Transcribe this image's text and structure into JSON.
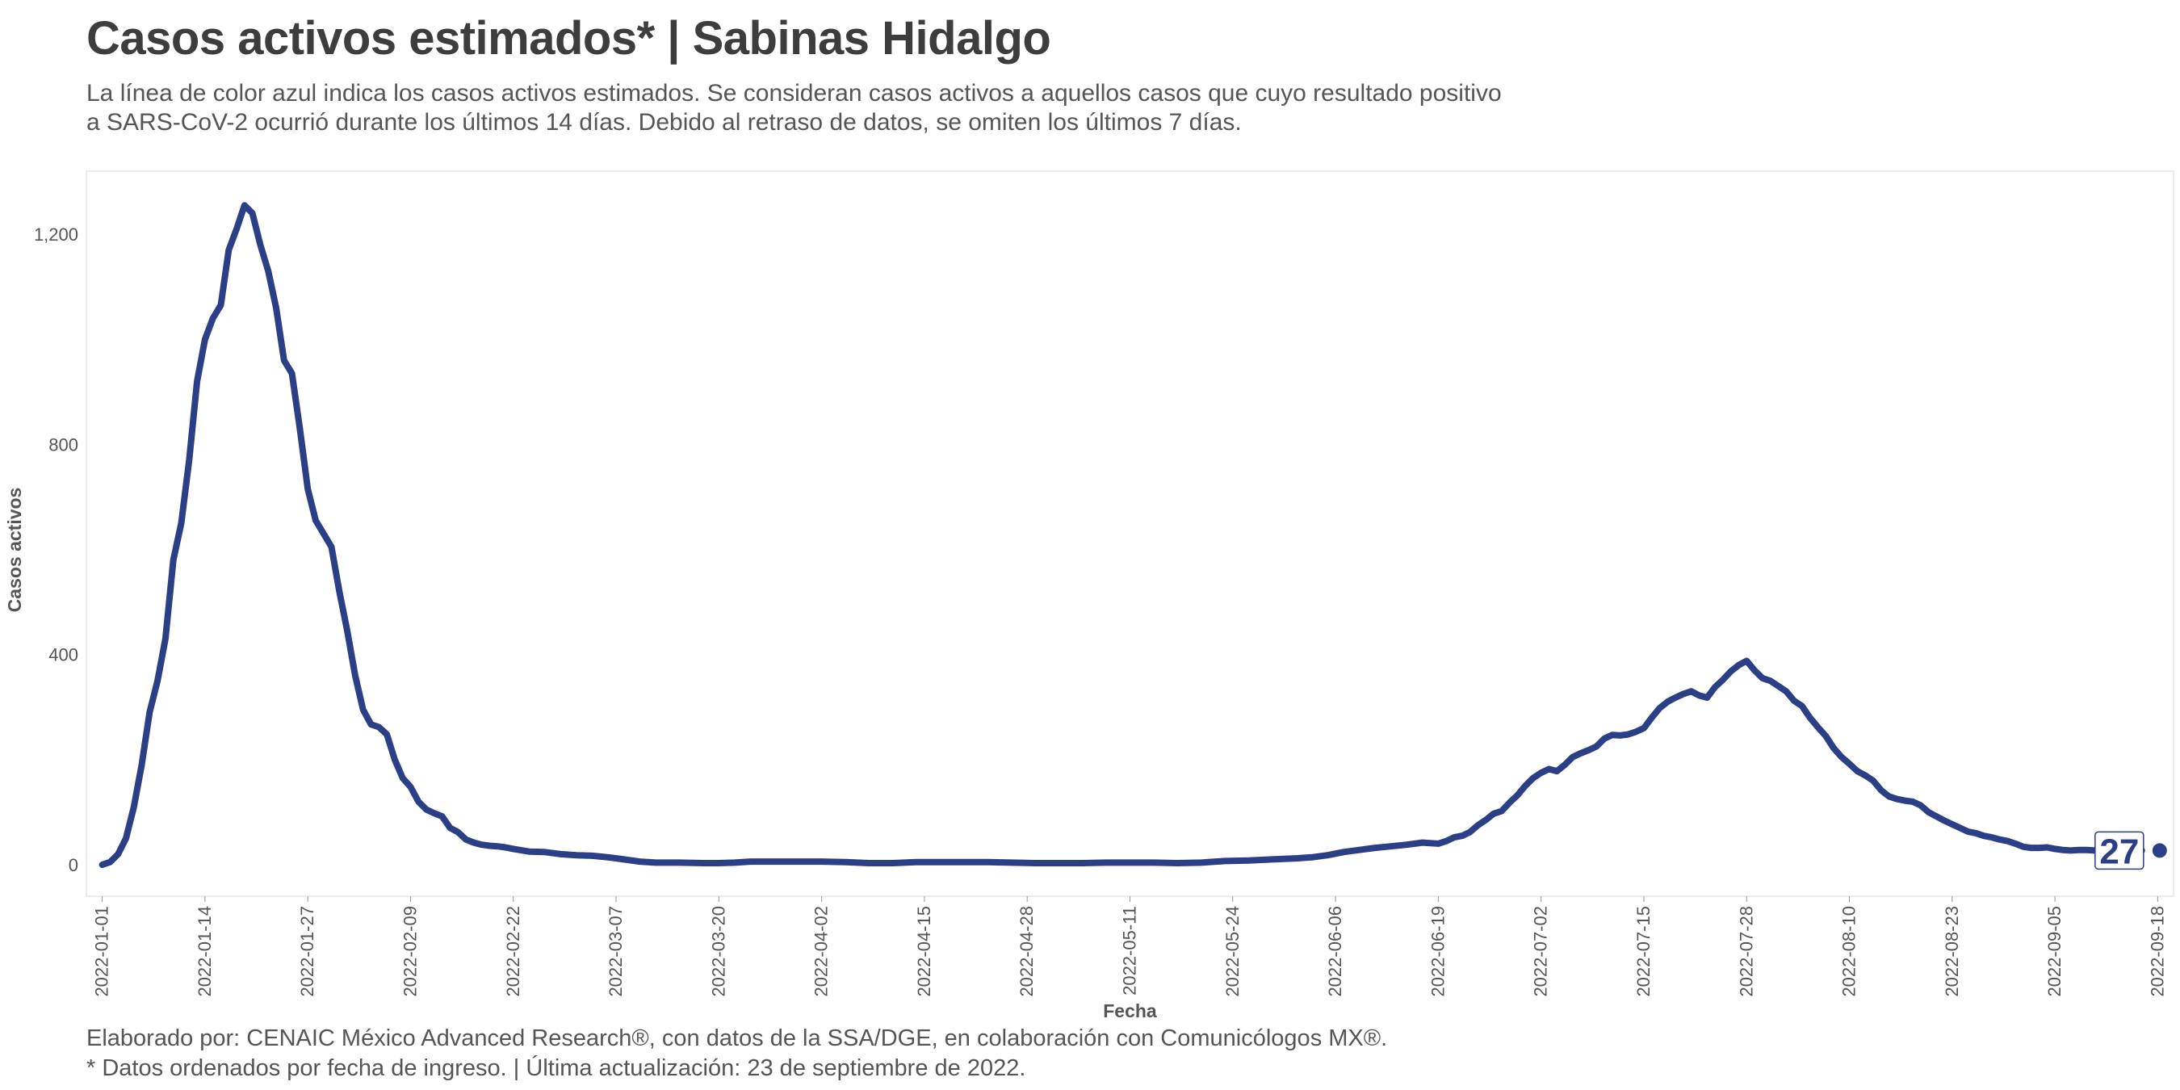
{
  "title": "Casos activos estimados* | Sabinas Hidalgo",
  "subtitle": [
    "La línea de color azul indica los casos activos estimados. Se consideran casos activos a aquellos casos que cuyo resultado positivo",
    "a SARS-CoV-2 ocurrió durante los últimos 14 días. Debido al retraso de datos, se omiten los últimos 7 días."
  ],
  "caption": [
    "Elaborado por: CENAIC México Advanced Research®, con datos de la SSA/DGE, en colaboración con Comunicólogos MX®.",
    "* Datos ordenados por fecha de ingreso. | Última actualización: 23 de septiembre de 2022."
  ],
  "chart_data": {
    "type": "line",
    "xlabel": "Fecha",
    "ylabel": "Casos activos",
    "x_type": "date",
    "xlim": [
      "2021-12-30",
      "2022-09-20"
    ],
    "ylim": [
      -60,
      1320
    ],
    "yticks": [
      0,
      400,
      800,
      1200
    ],
    "ytick_labels": [
      "0",
      "400",
      "800",
      "1,200"
    ],
    "xticks": [
      "2022-01-01",
      "2022-01-14",
      "2022-01-27",
      "2022-02-09",
      "2022-02-22",
      "2022-03-07",
      "2022-03-20",
      "2022-04-02",
      "2022-04-15",
      "2022-04-28",
      "2022-05-11",
      "2022-05-24",
      "2022-06-06",
      "2022-06-19",
      "2022-07-02",
      "2022-07-15",
      "2022-07-28",
      "2022-08-10",
      "2022-08-23",
      "2022-09-05",
      "2022-09-18"
    ],
    "grid": false,
    "line_color": "#2b3f87",
    "end_label": "27",
    "series": [
      {
        "points": [
          [
            "2022-01-01",
            0
          ],
          [
            "2022-01-02",
            5
          ],
          [
            "2022-01-03",
            20
          ],
          [
            "2022-01-04",
            50
          ],
          [
            "2022-01-05",
            110
          ],
          [
            "2022-01-06",
            190
          ],
          [
            "2022-01-07",
            290
          ],
          [
            "2022-01-08",
            350
          ],
          [
            "2022-01-09",
            430
          ],
          [
            "2022-01-10",
            580
          ],
          [
            "2022-01-11",
            650
          ],
          [
            "2022-01-12",
            770
          ],
          [
            "2022-01-13",
            920
          ],
          [
            "2022-01-14",
            1000
          ],
          [
            "2022-01-15",
            1040
          ],
          [
            "2022-01-16",
            1065
          ],
          [
            "2022-01-17",
            1170
          ],
          [
            "2022-01-18",
            1210
          ],
          [
            "2022-01-19",
            1255
          ],
          [
            "2022-01-20",
            1240
          ],
          [
            "2022-01-21",
            1180
          ],
          [
            "2022-01-22",
            1130
          ],
          [
            "2022-01-23",
            1060
          ],
          [
            "2022-01-24",
            960
          ],
          [
            "2022-01-25",
            935
          ],
          [
            "2022-01-26",
            830
          ],
          [
            "2022-01-27",
            715
          ],
          [
            "2022-01-28",
            655
          ],
          [
            "2022-01-29",
            630
          ],
          [
            "2022-01-30",
            605
          ],
          [
            "2022-01-31",
            520
          ],
          [
            "2022-02-01",
            445
          ],
          [
            "2022-02-02",
            360
          ],
          [
            "2022-02-03",
            295
          ],
          [
            "2022-02-04",
            267
          ],
          [
            "2022-02-05",
            262
          ],
          [
            "2022-02-06",
            248
          ],
          [
            "2022-02-07",
            200
          ],
          [
            "2022-02-08",
            165
          ],
          [
            "2022-02-09",
            148
          ],
          [
            "2022-02-10",
            120
          ],
          [
            "2022-02-11",
            105
          ],
          [
            "2022-02-12",
            98
          ],
          [
            "2022-02-13",
            92
          ],
          [
            "2022-02-14",
            70
          ],
          [
            "2022-02-15",
            62
          ],
          [
            "2022-02-16",
            48
          ],
          [
            "2022-02-17",
            42
          ],
          [
            "2022-02-18",
            38
          ],
          [
            "2022-02-19",
            36
          ],
          [
            "2022-02-20",
            35
          ],
          [
            "2022-02-21",
            33
          ],
          [
            "2022-02-22",
            30
          ],
          [
            "2022-02-24",
            25
          ],
          [
            "2022-02-26",
            24
          ],
          [
            "2022-02-28",
            20
          ],
          [
            "2022-03-02",
            18
          ],
          [
            "2022-03-04",
            17
          ],
          [
            "2022-03-06",
            14
          ],
          [
            "2022-03-08",
            10
          ],
          [
            "2022-03-10",
            6
          ],
          [
            "2022-03-12",
            4
          ],
          [
            "2022-03-15",
            4
          ],
          [
            "2022-03-18",
            3
          ],
          [
            "2022-03-20",
            3
          ],
          [
            "2022-03-22",
            4
          ],
          [
            "2022-03-24",
            6
          ],
          [
            "2022-03-27",
            6
          ],
          [
            "2022-03-30",
            6
          ],
          [
            "2022-04-02",
            6
          ],
          [
            "2022-04-05",
            5
          ],
          [
            "2022-04-08",
            3
          ],
          [
            "2022-04-11",
            3
          ],
          [
            "2022-04-14",
            5
          ],
          [
            "2022-04-17",
            5
          ],
          [
            "2022-04-20",
            5
          ],
          [
            "2022-04-23",
            5
          ],
          [
            "2022-04-26",
            4
          ],
          [
            "2022-04-29",
            3
          ],
          [
            "2022-05-02",
            3
          ],
          [
            "2022-05-05",
            3
          ],
          [
            "2022-05-08",
            4
          ],
          [
            "2022-05-11",
            4
          ],
          [
            "2022-05-14",
            4
          ],
          [
            "2022-05-17",
            3
          ],
          [
            "2022-05-20",
            4
          ],
          [
            "2022-05-23",
            7
          ],
          [
            "2022-05-26",
            8
          ],
          [
            "2022-05-29",
            10
          ],
          [
            "2022-06-01",
            12
          ],
          [
            "2022-06-03",
            14
          ],
          [
            "2022-06-05",
            18
          ],
          [
            "2022-06-07",
            24
          ],
          [
            "2022-06-09",
            28
          ],
          [
            "2022-06-11",
            32
          ],
          [
            "2022-06-13",
            35
          ],
          [
            "2022-06-15",
            38
          ],
          [
            "2022-06-17",
            42
          ],
          [
            "2022-06-19",
            40
          ],
          [
            "2022-06-20",
            45
          ],
          [
            "2022-06-21",
            52
          ],
          [
            "2022-06-22",
            55
          ],
          [
            "2022-06-23",
            62
          ],
          [
            "2022-06-24",
            75
          ],
          [
            "2022-06-25",
            85
          ],
          [
            "2022-06-26",
            97
          ],
          [
            "2022-06-27",
            102
          ],
          [
            "2022-06-28",
            118
          ],
          [
            "2022-06-29",
            132
          ],
          [
            "2022-06-30",
            150
          ],
          [
            "2022-07-01",
            165
          ],
          [
            "2022-07-02",
            175
          ],
          [
            "2022-07-03",
            182
          ],
          [
            "2022-07-04",
            178
          ],
          [
            "2022-07-05",
            190
          ],
          [
            "2022-07-06",
            205
          ],
          [
            "2022-07-07",
            212
          ],
          [
            "2022-07-08",
            218
          ],
          [
            "2022-07-09",
            225
          ],
          [
            "2022-07-10",
            240
          ],
          [
            "2022-07-11",
            247
          ],
          [
            "2022-07-12",
            246
          ],
          [
            "2022-07-13",
            248
          ],
          [
            "2022-07-14",
            253
          ],
          [
            "2022-07-15",
            260
          ],
          [
            "2022-07-16",
            280
          ],
          [
            "2022-07-17",
            298
          ],
          [
            "2022-07-18",
            310
          ],
          [
            "2022-07-19",
            318
          ],
          [
            "2022-07-20",
            325
          ],
          [
            "2022-07-21",
            330
          ],
          [
            "2022-07-22",
            322
          ],
          [
            "2022-07-23",
            318
          ],
          [
            "2022-07-24",
            338
          ],
          [
            "2022-07-25",
            352
          ],
          [
            "2022-07-26",
            368
          ],
          [
            "2022-07-27",
            380
          ],
          [
            "2022-07-28",
            388
          ],
          [
            "2022-07-29",
            370
          ],
          [
            "2022-07-30",
            355
          ],
          [
            "2022-07-31",
            350
          ],
          [
            "2022-08-01",
            340
          ],
          [
            "2022-08-02",
            330
          ],
          [
            "2022-08-03",
            312
          ],
          [
            "2022-08-04",
            302
          ],
          [
            "2022-08-05",
            280
          ],
          [
            "2022-08-06",
            262
          ],
          [
            "2022-08-07",
            245
          ],
          [
            "2022-08-08",
            222
          ],
          [
            "2022-08-09",
            205
          ],
          [
            "2022-08-10",
            192
          ],
          [
            "2022-08-11",
            178
          ],
          [
            "2022-08-12",
            170
          ],
          [
            "2022-08-13",
            160
          ],
          [
            "2022-08-14",
            142
          ],
          [
            "2022-08-15",
            130
          ],
          [
            "2022-08-16",
            125
          ],
          [
            "2022-08-17",
            122
          ],
          [
            "2022-08-18",
            120
          ],
          [
            "2022-08-19",
            113
          ],
          [
            "2022-08-20",
            100
          ],
          [
            "2022-08-21",
            92
          ],
          [
            "2022-08-22",
            84
          ],
          [
            "2022-08-23",
            77
          ],
          [
            "2022-08-24",
            70
          ],
          [
            "2022-08-25",
            63
          ],
          [
            "2022-08-26",
            60
          ],
          [
            "2022-08-27",
            55
          ],
          [
            "2022-08-28",
            52
          ],
          [
            "2022-08-29",
            48
          ],
          [
            "2022-08-30",
            45
          ],
          [
            "2022-08-31",
            40
          ],
          [
            "2022-09-01",
            34
          ],
          [
            "2022-09-02",
            32
          ],
          [
            "2022-09-03",
            32
          ],
          [
            "2022-09-04",
            33
          ],
          [
            "2022-09-05",
            30
          ],
          [
            "2022-09-06",
            28
          ],
          [
            "2022-09-07",
            27
          ],
          [
            "2022-09-08",
            28
          ],
          [
            "2022-09-09",
            28
          ],
          [
            "2022-09-10",
            27
          ],
          [
            "2022-09-11",
            26
          ],
          [
            "2022-09-12",
            27
          ],
          [
            "2022-09-16",
            27
          ]
        ]
      }
    ]
  }
}
